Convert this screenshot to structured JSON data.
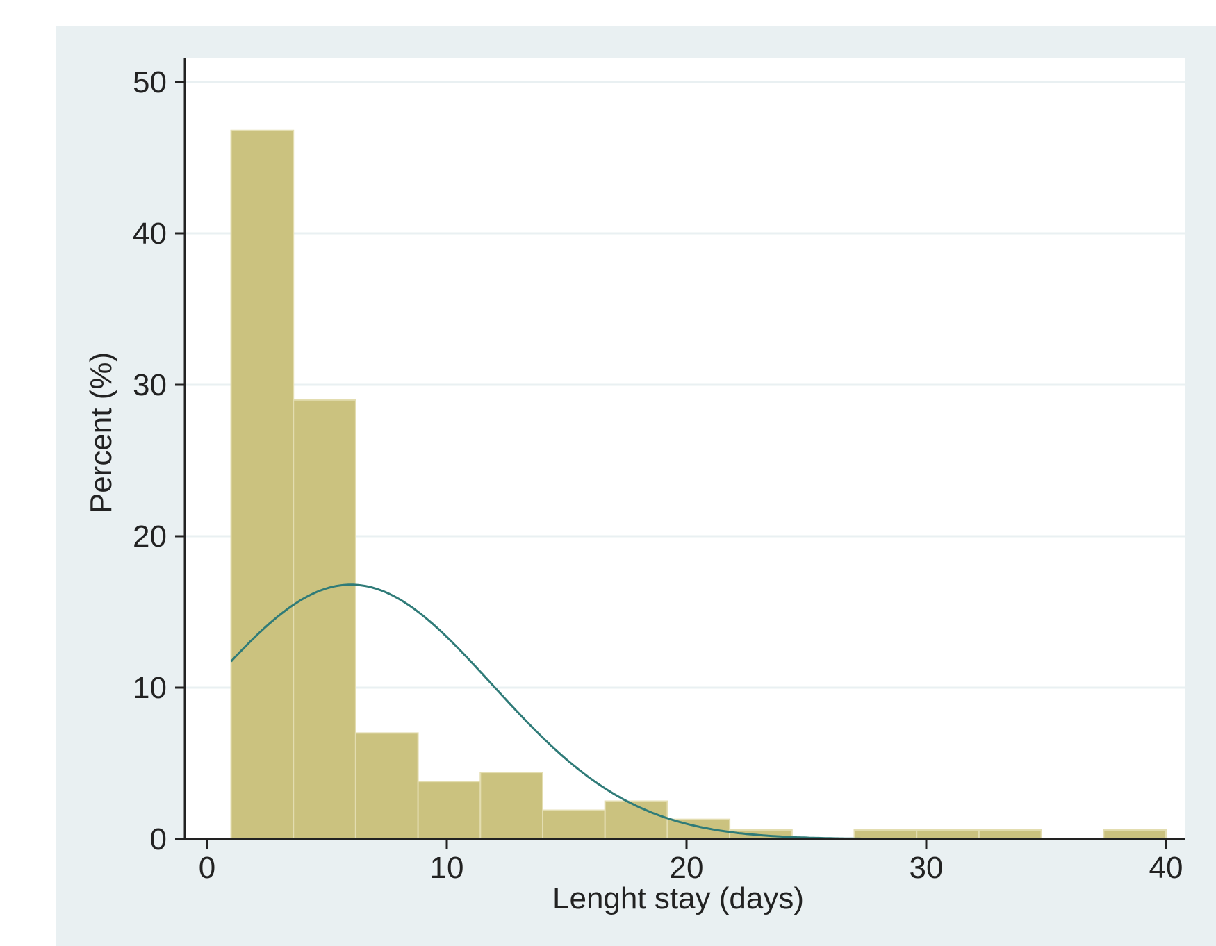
{
  "chart_data": {
    "type": "bar",
    "subtype": "histogram",
    "xlabel": "Lenght stay (days)",
    "ylabel": "Percent (%)",
    "xlim": [
      0,
      40
    ],
    "ylim": [
      0,
      50
    ],
    "x_ticks": [
      0,
      10,
      20,
      30,
      40
    ],
    "y_ticks": [
      0,
      10,
      20,
      30,
      40,
      50
    ],
    "grid": "horizontal",
    "bins": [
      {
        "x0": 1.0,
        "x1": 3.6,
        "value": 46.8
      },
      {
        "x0": 3.6,
        "x1": 6.2,
        "value": 29.0
      },
      {
        "x0": 6.2,
        "x1": 8.8,
        "value": 7.0
      },
      {
        "x0": 8.8,
        "x1": 11.4,
        "value": 3.8
      },
      {
        "x0": 11.4,
        "x1": 14.0,
        "value": 4.4
      },
      {
        "x0": 14.0,
        "x1": 16.6,
        "value": 1.9
      },
      {
        "x0": 16.6,
        "x1": 19.2,
        "value": 2.5
      },
      {
        "x0": 19.2,
        "x1": 21.8,
        "value": 1.3
      },
      {
        "x0": 21.8,
        "x1": 24.4,
        "value": 0.6
      },
      {
        "x0": 27.0,
        "x1": 29.6,
        "value": 0.6
      },
      {
        "x0": 29.6,
        "x1": 32.2,
        "value": 0.6
      },
      {
        "x0": 32.2,
        "x1": 34.8,
        "value": 0.6
      },
      {
        "x0": 37.4,
        "x1": 40.0,
        "value": 0.6
      }
    ],
    "normal_curve": {
      "mean": 6.0,
      "sd": 5.9,
      "x_range": [
        1,
        40
      ],
      "peak_value": 16.8
    },
    "colors": {
      "background": "#e9f0f2",
      "plot_area": "#ffffff",
      "bar_fill": "#cbc27f",
      "bar_edge": "#e3ddb0",
      "curve": "#2f7b78",
      "axis": "#222222",
      "grid": "#e9f0f2"
    }
  }
}
